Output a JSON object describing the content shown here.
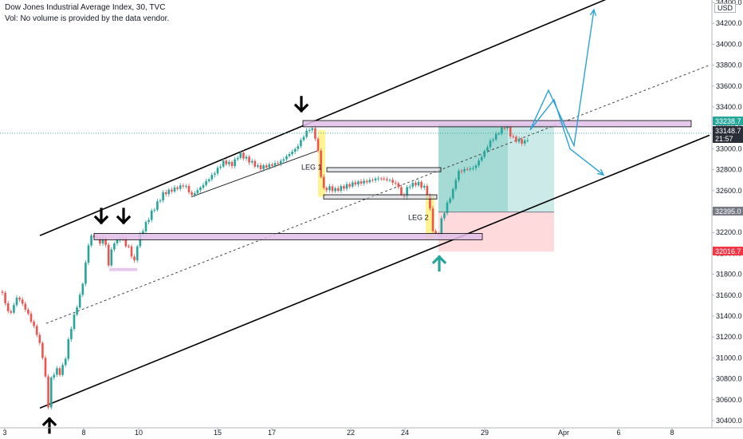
{
  "header": {
    "title": "Dow Jones Industrial Average Index, 30, TVC",
    "volume_note": "Vol: No volume is provided by the data vendor.",
    "currency": "USD"
  },
  "colors": {
    "up": "#26a69a",
    "down": "#ef5350",
    "sr_zone": "#e1bee7",
    "target_zone": "#80cbc4",
    "stop_zone": "#ffcdd2",
    "projection": "#29a3d6",
    "current_price_tag": "#26a69a"
  },
  "chart_data": {
    "type": "candlestick",
    "title": "Dow Jones Industrial Average Index, 30, TVC",
    "x_axis": {
      "tick_labels": [
        "3",
        "8",
        "10",
        "15",
        "17",
        "22",
        "24",
        "29",
        "Apr",
        "6",
        "8"
      ]
    },
    "y_axis": {
      "range": [
        30350,
        34450
      ],
      "tick_labels": [
        "34400.0",
        "34200.0",
        "34000.0",
        "33800.0",
        "33600.0",
        "33400.0",
        "33200.0",
        "33000.0",
        "32800.0",
        "32600.0",
        "32400.0",
        "32200.0",
        "32000.0",
        "31800.0",
        "31600.0",
        "31400.0",
        "31200.0",
        "31000.0",
        "30800.0",
        "30600.0",
        "30400.0"
      ]
    },
    "price_tags": [
      {
        "label": "33238.7",
        "value": 33238.7,
        "color": "#26a69a"
      },
      {
        "label": "33148.7",
        "value": 33148.7,
        "color": "#2a2e39"
      },
      {
        "label": "21:57",
        "value": 33060,
        "color": "#2a2e39"
      },
      {
        "label": "32395.0",
        "value": 32395.0,
        "color": "#787b86"
      },
      {
        "label": "32016.7",
        "value": 32016.7,
        "color": "#f23645"
      }
    ],
    "price_path": [
      [
        0,
        31680
      ],
      [
        12,
        31400
      ],
      [
        22,
        31600
      ],
      [
        34,
        31450
      ],
      [
        46,
        31250
      ],
      [
        53,
        31050
      ],
      [
        58,
        30760
      ],
      [
        61,
        30520
      ],
      [
        64,
        30800
      ],
      [
        70,
        30900
      ],
      [
        76,
        30850
      ],
      [
        82,
        31000
      ],
      [
        88,
        31250
      ],
      [
        95,
        31450
      ],
      [
        101,
        31600
      ],
      [
        106,
        31800
      ],
      [
        110,
        32050
      ],
      [
        114,
        32150
      ],
      [
        120,
        32150
      ],
      [
        126,
        32080
      ],
      [
        131,
        32170
      ],
      [
        136,
        31870
      ],
      [
        141,
        32080
      ],
      [
        147,
        32120
      ],
      [
        152,
        32160
      ],
      [
        158,
        32080
      ],
      [
        163,
        32050
      ],
      [
        168,
        31900
      ],
      [
        173,
        32130
      ],
      [
        180,
        32250
      ],
      [
        190,
        32400
      ],
      [
        205,
        32580
      ],
      [
        220,
        32620
      ],
      [
        232,
        32650
      ],
      [
        240,
        32540
      ],
      [
        252,
        32620
      ],
      [
        268,
        32750
      ],
      [
        280,
        32870
      ],
      [
        292,
        32850
      ],
      [
        300,
        32960
      ],
      [
        312,
        32900
      ],
      [
        325,
        32830
      ],
      [
        338,
        32850
      ],
      [
        350,
        32870
      ],
      [
        360,
        32930
      ],
      [
        372,
        33000
      ],
      [
        380,
        33100
      ],
      [
        387,
        33180
      ],
      [
        393,
        33170
      ],
      [
        398,
        33020
      ],
      [
        402,
        32760
      ],
      [
        406,
        32600
      ],
      [
        412,
        32620
      ],
      [
        420,
        32600
      ],
      [
        432,
        32640
      ],
      [
        445,
        32680
      ],
      [
        460,
        32700
      ],
      [
        475,
        32730
      ],
      [
        490,
        32700
      ],
      [
        500,
        32640
      ],
      [
        505,
        32500
      ],
      [
        512,
        32640
      ],
      [
        524,
        32660
      ],
      [
        535,
        32600
      ],
      [
        539,
        32420
      ],
      [
        544,
        32170
      ],
      [
        549,
        32150
      ],
      [
        554,
        32320
      ],
      [
        560,
        32450
      ],
      [
        568,
        32600
      ],
      [
        574,
        32780
      ],
      [
        583,
        32810
      ],
      [
        595,
        32830
      ],
      [
        606,
        32960
      ],
      [
        614,
        33070
      ],
      [
        620,
        33120
      ],
      [
        628,
        33180
      ],
      [
        635,
        33230
      ],
      [
        642,
        33100
      ],
      [
        650,
        33070
      ],
      [
        658,
        33050
      ],
      [
        665,
        33120
      ]
    ],
    "channel": {
      "lower": [
        [
          50,
          30520
        ],
        [
          890,
          33130
        ]
      ],
      "upper": [
        [
          50,
          32170
        ],
        [
          770,
          34460
        ]
      ],
      "median": [
        [
          58,
          31330
        ],
        [
          890,
          33800
        ]
      ]
    },
    "support_resistance_zones": [
      {
        "x0": 118,
        "x1": 605,
        "y_low": 32130,
        "y_high": 32190
      },
      {
        "x0": 380,
        "x1": 867,
        "y_low": 33210,
        "y_high": 33270
      },
      {
        "x0": 137,
        "x1": 172,
        "y_low": 31830,
        "y_high": 31860
      }
    ],
    "range_boxes": [
      {
        "x0": 410,
        "x1": 553,
        "y_low": 32780,
        "y_high": 32820
      },
      {
        "x0": 406,
        "x1": 548,
        "y_low": 32520,
        "y_high": 32560
      }
    ],
    "legs": [
      {
        "label": "LEG 1",
        "x0": 399,
        "x1": 408,
        "y_low": 32540,
        "y_high": 33180,
        "label_x": 378,
        "label_y": 32800
      },
      {
        "label": "LEG 2",
        "x0": 534,
        "x1": 545,
        "y_low": 32130,
        "y_high": 32560,
        "label_x": 512,
        "label_y": 32320
      }
    ],
    "position": {
      "x0": 550,
      "x1": 695,
      "entry": 32395.0,
      "target": 33238.7,
      "stop": 32016.7,
      "fill_x": 637
    },
    "projection_paths": [
      [
        [
          665,
          33180
        ],
        [
          688,
          33560
        ],
        [
          720,
          33030
        ],
        [
          745,
          34330
        ]
      ],
      [
        [
          665,
          33180
        ],
        [
          695,
          33470
        ],
        [
          715,
          33000
        ],
        [
          757,
          32750
        ]
      ]
    ],
    "markers": [
      {
        "x": 378,
        "value": 33340,
        "direction": "down",
        "color": "#000000"
      },
      {
        "x": 127,
        "value": 32270,
        "direction": "down",
        "color": "#000000"
      },
      {
        "x": 155,
        "value": 32270,
        "direction": "down",
        "color": "#000000"
      },
      {
        "x": 62,
        "value": 30440,
        "direction": "up",
        "color": "#000000"
      },
      {
        "x": 551,
        "value": 31990,
        "direction": "up",
        "color": "#26a69a"
      }
    ]
  }
}
